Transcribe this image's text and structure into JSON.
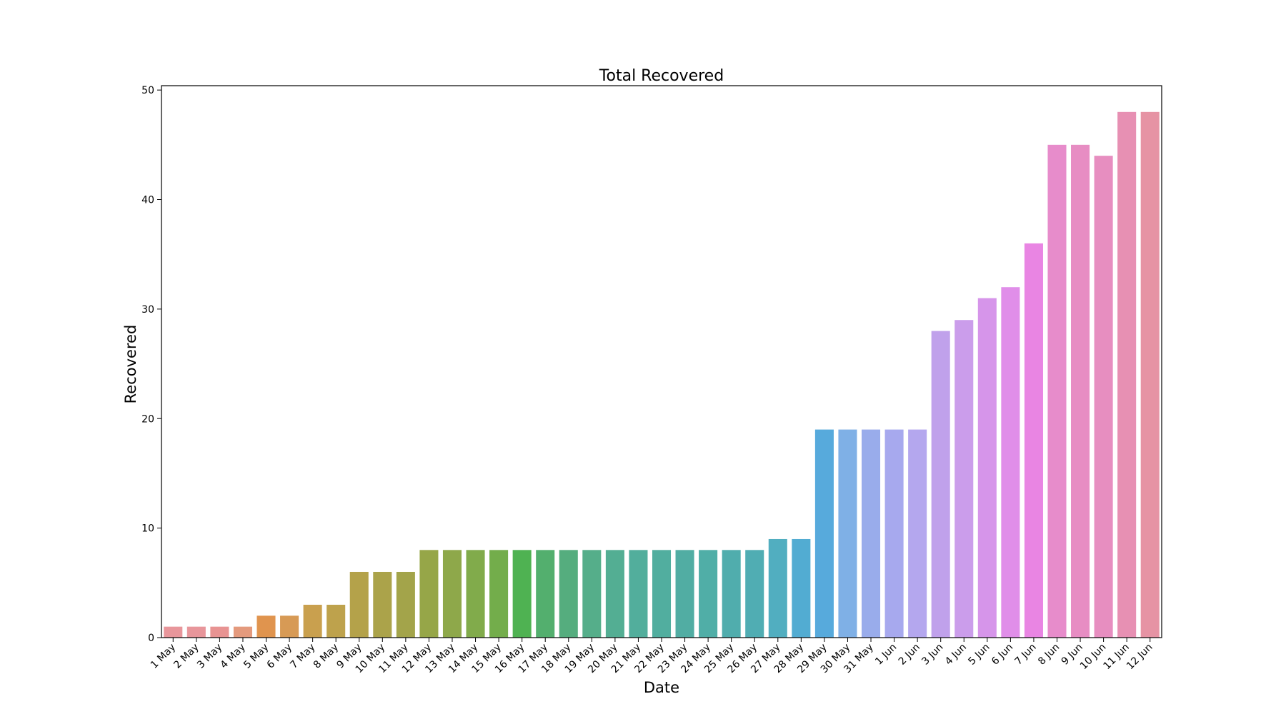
{
  "chart_data": {
    "type": "bar",
    "title": "Total Recovered",
    "xlabel": "Date",
    "ylabel": "Recovered",
    "ylim": [
      0,
      50.4
    ],
    "yticks": [
      0,
      10,
      20,
      30,
      40,
      50
    ],
    "grid": false,
    "legend": "none",
    "categories": [
      "1 May",
      "2 May",
      "3 May",
      "4 May",
      "5 May",
      "6 May",
      "7 May",
      "8 May",
      "9 May",
      "10 May",
      "11 May",
      "12 May",
      "13 May",
      "14 May",
      "15 May",
      "16 May",
      "17 May",
      "18 May",
      "19 May",
      "20 May",
      "21 May",
      "22 May",
      "23 May",
      "24 May",
      "25 May",
      "26 May",
      "27 May",
      "28 May",
      "29 May",
      "30 May",
      "31 May",
      "1 Jun",
      "2 Jun",
      "3 Jun",
      "4 Jun",
      "5 Jun",
      "6 Jun",
      "7 Jun",
      "8 Jun",
      "9 Jun",
      "10 Jun",
      "11 Jun",
      "12 Jun"
    ],
    "values": [
      1,
      1,
      1,
      1,
      2,
      2,
      3,
      3,
      6,
      6,
      6,
      8,
      8,
      8,
      8,
      8,
      8,
      8,
      8,
      8,
      8,
      8,
      8,
      8,
      8,
      8,
      9,
      9,
      19,
      19,
      19,
      19,
      19,
      28,
      29,
      31,
      32,
      36,
      45,
      45,
      44,
      48,
      48
    ],
    "colors": [
      "#e8969b",
      "#e8969b",
      "#e89392",
      "#e49a7d",
      "#e0944e",
      "#d79a55",
      "#c9a04e",
      "#bea24c",
      "#b4a24a",
      "#aba34a",
      "#a3a44a",
      "#96a648",
      "#8ea84a",
      "#81ab4b",
      "#73ad4b",
      "#4fb252",
      "#53af6e",
      "#55ad7e",
      "#55ae8a",
      "#53ae93",
      "#52ae9c",
      "#51ae9f",
      "#51ada3",
      "#50aea7",
      "#50adad",
      "#50adb3",
      "#51aec0",
      "#52acd2",
      "#57aadc",
      "#7fb0e6",
      "#99aceb",
      "#a7a9ee",
      "#b4a7ee",
      "#c0a1eb",
      "#cb9deb",
      "#d695ea",
      "#e08ee9",
      "#e985e3",
      "#e78ccb",
      "#e78dc3",
      "#e78ec0",
      "#e790b3",
      "#e693a4"
    ]
  }
}
